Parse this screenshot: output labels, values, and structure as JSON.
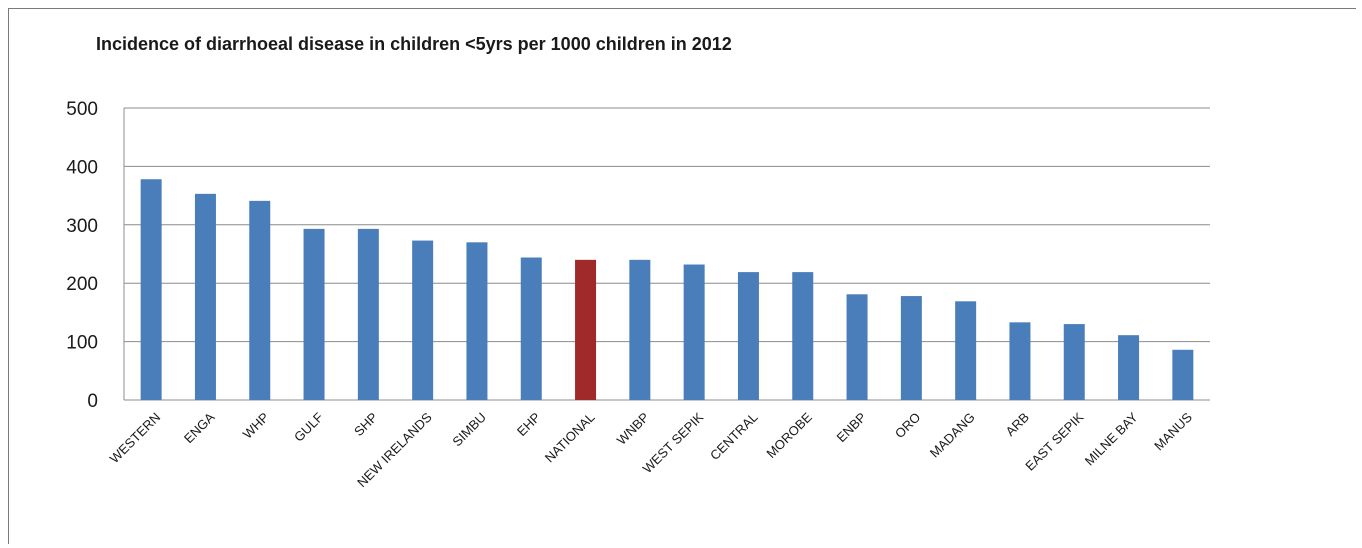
{
  "chart_data": {
    "type": "bar",
    "title": "Incidence of diarrhoeal disease in children <5yrs  per 1000  children in 2012",
    "xlabel": "",
    "ylabel": "",
    "ylim": [
      0,
      500
    ],
    "yticks": [
      "0",
      "100",
      "200",
      "300",
      "400",
      "500"
    ],
    "grid": true,
    "legend": "none",
    "categories": [
      "WESTERN",
      "ENGA",
      "WHP",
      "GULF",
      "SHP",
      "NEW IRELANDS",
      "SIMBU",
      "EHP",
      "NATIONAL",
      "WNBP",
      "WEST SEPIK",
      "CENTRAL",
      "MOROBE",
      "ENBP",
      "ORO",
      "MADANG",
      "ARB",
      "EAST SEPIK",
      "MILNE BAY",
      "MANUS"
    ],
    "values": [
      378,
      353,
      341,
      293,
      293,
      273,
      270,
      244,
      240,
      240,
      232,
      219,
      219,
      181,
      178,
      169,
      133,
      130,
      111,
      86
    ],
    "highlight_category": "NATIONAL",
    "colors": {
      "bar": "#4a7ebb",
      "highlight": "#a02a2a",
      "grid": "#8c8c8c"
    }
  }
}
